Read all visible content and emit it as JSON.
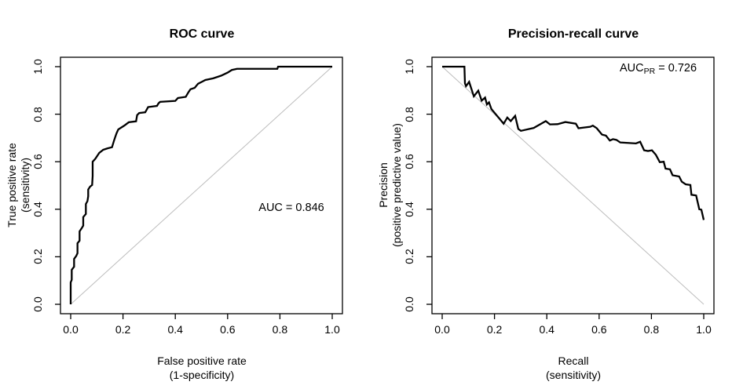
{
  "figure": {
    "background": "#ffffff",
    "curve_color": "#000000",
    "box_color": "#000000",
    "reference_color": "#bdbdbd"
  },
  "chart_data": [
    {
      "type": "line",
      "id": "roc-curve",
      "title": "ROC curve",
      "xlabel_lines": [
        "False positive rate",
        "(1-specificity)"
      ],
      "ylabel_lines": [
        "True positive rate",
        "(sensitivity)"
      ],
      "xlim": [
        0,
        1
      ],
      "ylim": [
        0,
        1
      ],
      "xticks": [
        "0.0",
        "0.2",
        "0.4",
        "0.6",
        "0.8",
        "1.0"
      ],
      "yticks": [
        "0.0",
        "0.2",
        "0.4",
        "0.6",
        "0.8",
        "1.0"
      ],
      "grid": false,
      "legend": null,
      "annotation": {
        "prefix": "AUC",
        "subscript": "",
        "suffix": " = 0.846"
      },
      "reference_line": {
        "from": [
          0,
          0
        ],
        "to": [
          1,
          1
        ],
        "color": "#bdbdbd"
      },
      "series": [
        {
          "name": "ROC curve",
          "color": "#000000",
          "points": [
            [
              0.0,
              0.0
            ],
            [
              0.0,
              0.092
            ],
            [
              0.004,
              0.103
            ],
            [
              0.004,
              0.145
            ],
            [
              0.013,
              0.158
            ],
            [
              0.013,
              0.191
            ],
            [
              0.021,
              0.203
            ],
            [
              0.026,
              0.215
            ],
            [
              0.026,
              0.257
            ],
            [
              0.034,
              0.268
            ],
            [
              0.034,
              0.307
            ],
            [
              0.042,
              0.32
            ],
            [
              0.048,
              0.331
            ],
            [
              0.048,
              0.367
            ],
            [
              0.058,
              0.38
            ],
            [
              0.058,
              0.422
            ],
            [
              0.064,
              0.434
            ],
            [
              0.067,
              0.455
            ],
            [
              0.067,
              0.483
            ],
            [
              0.074,
              0.495
            ],
            [
              0.082,
              0.502
            ],
            [
              0.084,
              0.54
            ],
            [
              0.084,
              0.6
            ],
            [
              0.094,
              0.612
            ],
            [
              0.109,
              0.637
            ],
            [
              0.124,
              0.65
            ],
            [
              0.14,
              0.656
            ],
            [
              0.158,
              0.661
            ],
            [
              0.166,
              0.69
            ],
            [
              0.175,
              0.719
            ],
            [
              0.182,
              0.736
            ],
            [
              0.205,
              0.752
            ],
            [
              0.222,
              0.766
            ],
            [
              0.25,
              0.77
            ],
            [
              0.254,
              0.796
            ],
            [
              0.262,
              0.805
            ],
            [
              0.285,
              0.808
            ],
            [
              0.29,
              0.818
            ],
            [
              0.296,
              0.83
            ],
            [
              0.33,
              0.835
            ],
            [
              0.336,
              0.846
            ],
            [
              0.342,
              0.852
            ],
            [
              0.4,
              0.856
            ],
            [
              0.41,
              0.868
            ],
            [
              0.44,
              0.873
            ],
            [
              0.45,
              0.892
            ],
            [
              0.458,
              0.905
            ],
            [
              0.474,
              0.911
            ],
            [
              0.487,
              0.928
            ],
            [
              0.515,
              0.944
            ],
            [
              0.545,
              0.951
            ],
            [
              0.575,
              0.962
            ],
            [
              0.6,
              0.975
            ],
            [
              0.616,
              0.986
            ],
            [
              0.636,
              0.991
            ],
            [
              0.79,
              0.991
            ],
            [
              0.793,
              1.0
            ],
            [
              1.0,
              1.0
            ]
          ]
        }
      ]
    },
    {
      "type": "line",
      "id": "pr-curve",
      "title": "Precision-recall curve",
      "xlabel_lines": [
        "Recall",
        "(sensitivity)"
      ],
      "ylabel_lines": [
        "Precision",
        "(positive predictive value)"
      ],
      "xlim": [
        0,
        1
      ],
      "ylim": [
        0,
        1
      ],
      "xticks": [
        "0.0",
        "0.2",
        "0.4",
        "0.6",
        "0.8",
        "1.0"
      ],
      "yticks": [
        "0.0",
        "0.2",
        "0.4",
        "0.6",
        "0.8",
        "1.0"
      ],
      "grid": false,
      "legend": null,
      "annotation": {
        "prefix": "AUC",
        "subscript": "PR",
        "suffix": " = 0.726"
      },
      "reference_line": {
        "from": [
          0,
          1
        ],
        "to": [
          1,
          0
        ],
        "color": "#bdbdbd"
      },
      "series": [
        {
          "name": "Precision-recall curve",
          "color": "#000000",
          "points": [
            [
              0.0,
              1.0
            ],
            [
              0.085,
              1.0
            ],
            [
              0.087,
              0.93
            ],
            [
              0.091,
              0.918
            ],
            [
              0.103,
              0.936
            ],
            [
              0.121,
              0.875
            ],
            [
              0.138,
              0.899
            ],
            [
              0.151,
              0.857
            ],
            [
              0.164,
              0.87
            ],
            [
              0.171,
              0.841
            ],
            [
              0.179,
              0.85
            ],
            [
              0.188,
              0.822
            ],
            [
              0.235,
              0.76
            ],
            [
              0.249,
              0.786
            ],
            [
              0.262,
              0.771
            ],
            [
              0.279,
              0.793
            ],
            [
              0.291,
              0.738
            ],
            [
              0.301,
              0.73
            ],
            [
              0.35,
              0.742
            ],
            [
              0.396,
              0.771
            ],
            [
              0.412,
              0.757
            ],
            [
              0.441,
              0.758
            ],
            [
              0.471,
              0.767
            ],
            [
              0.511,
              0.76
            ],
            [
              0.521,
              0.741
            ],
            [
              0.566,
              0.747
            ],
            [
              0.576,
              0.752
            ],
            [
              0.591,
              0.741
            ],
            [
              0.611,
              0.714
            ],
            [
              0.626,
              0.71
            ],
            [
              0.641,
              0.689
            ],
            [
              0.653,
              0.695
            ],
            [
              0.666,
              0.692
            ],
            [
              0.681,
              0.681
            ],
            [
              0.741,
              0.677
            ],
            [
              0.757,
              0.684
            ],
            [
              0.772,
              0.648
            ],
            [
              0.787,
              0.645
            ],
            [
              0.802,
              0.648
            ],
            [
              0.817,
              0.629
            ],
            [
              0.832,
              0.598
            ],
            [
              0.847,
              0.6
            ],
            [
              0.854,
              0.571
            ],
            [
              0.871,
              0.568
            ],
            [
              0.881,
              0.543
            ],
            [
              0.906,
              0.538
            ],
            [
              0.916,
              0.516
            ],
            [
              0.931,
              0.505
            ],
            [
              0.949,
              0.502
            ],
            [
              0.953,
              0.461
            ],
            [
              0.971,
              0.458
            ],
            [
              0.983,
              0.4
            ],
            [
              0.991,
              0.398
            ],
            [
              1.0,
              0.355
            ]
          ]
        }
      ]
    }
  ]
}
